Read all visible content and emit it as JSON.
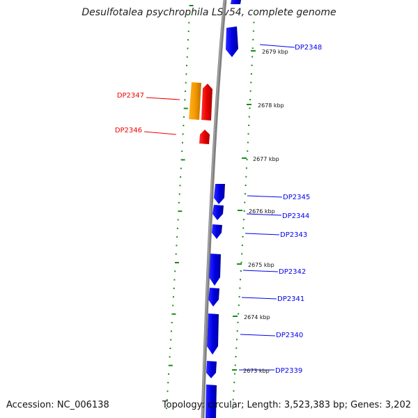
{
  "title": "Desulfotalea psychrophila LSv54, complete genome",
  "accession": "Accession: NC_006138",
  "topology": "Topology: circular; Length: 3,523,383 bp; Genes: 3,202",
  "colors": {
    "forward_strand": "#0000ee",
    "reverse_strand": "#ee0000",
    "reverse_rna": "#f5a000",
    "backbone": "#808080",
    "tick": "#1a8a1a"
  },
  "scale_labels": [
    "2679 kbp",
    "2678 kbp",
    "2677 kbp",
    "2676 kbp",
    "2675 kbp",
    "2674 kbp",
    "2673 kbp"
  ],
  "genes": [
    {
      "label": "DP2348",
      "strand": "forward"
    },
    {
      "label": "DP2347",
      "strand": "reverse"
    },
    {
      "label": "DP2346",
      "strand": "reverse"
    },
    {
      "label": "DP2345",
      "strand": "forward"
    },
    {
      "label": "DP2344",
      "strand": "forward"
    },
    {
      "label": "DP2343",
      "strand": "forward"
    },
    {
      "label": "DP2342",
      "strand": "forward"
    },
    {
      "label": "DP2341",
      "strand": "forward"
    },
    {
      "label": "DP2340",
      "strand": "forward"
    },
    {
      "label": "DP2339",
      "strand": "forward"
    }
  ]
}
